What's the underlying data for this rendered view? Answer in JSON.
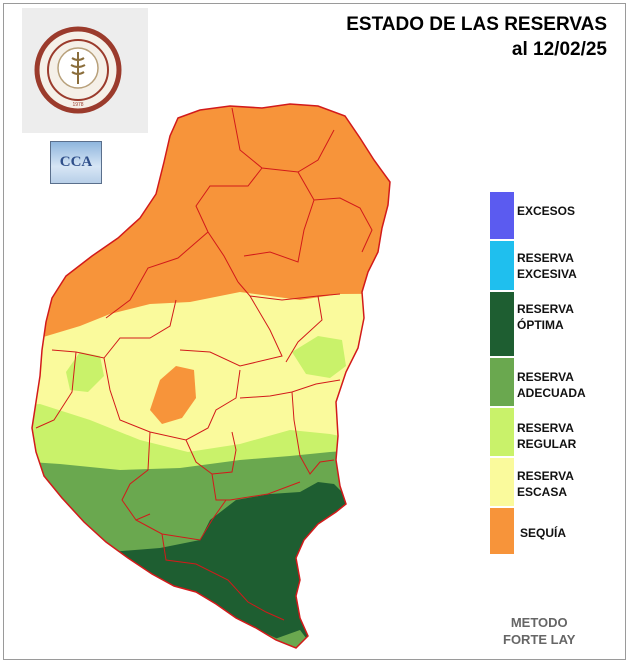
{
  "header": {
    "title_line1": "ESTADO DE LAS RESERVAS",
    "title_line2": "al 12/02/25"
  },
  "logos": {
    "primary_text": "BOLSA DE CEREALES DE ENTRE RIOS",
    "primary_year": "1978",
    "secondary_text": "CCA"
  },
  "legend": {
    "items": [
      {
        "label_line1": "EXCESOS",
        "label_line2": "",
        "color": "#5b5bf0"
      },
      {
        "label_line1": "RESERVA",
        "label_line2": "EXCESIVA",
        "color": "#1fbfee"
      },
      {
        "label_line1": "RESERVA",
        "label_line2": "ÓPTIMA",
        "color": "#1e5e31"
      },
      {
        "label_line1": "RESERVA",
        "label_line2": "ADECUADA",
        "color": "#6aa84f"
      },
      {
        "label_line1": "RESERVA",
        "label_line2": "REGULAR",
        "color": "#c9f26a"
      },
      {
        "label_line1": "RESERVA",
        "label_line2": "ESCASA",
        "color": "#fafa9c"
      },
      {
        "label_line1": "SEQUÍA",
        "label_line2": "",
        "color": "#f7943a"
      }
    ]
  },
  "footer": {
    "method_line1": "METODO",
    "method_line2": "FORTE LAY"
  },
  "map_colors": {
    "border": "#d21a1a",
    "sequia": "#f7943a",
    "escasa": "#fafa9c",
    "regular": "#c9f26a",
    "adecuada": "#6aa84f",
    "optima": "#1e5e31"
  }
}
